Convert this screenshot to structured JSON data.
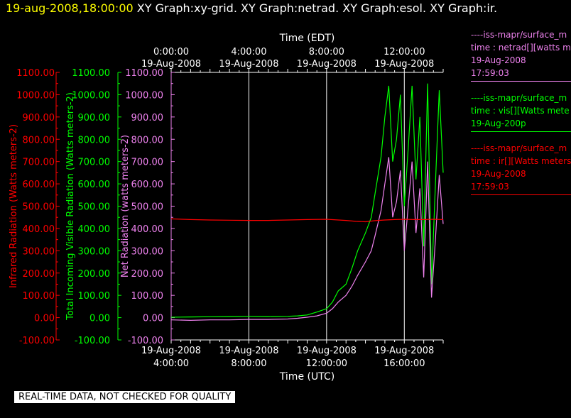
{
  "header": {
    "date": "19-aug-2008,18:00:00",
    "graphs": "XY Graph:xy-grid.  XY Graph:netrad.  XY Graph:esol.  XY Graph:ir."
  },
  "footer": {
    "quality_note": "REAL-TIME DATA, NOT CHECKED FOR QUALITY"
  },
  "legend": [
    {
      "color": "#ee82ee",
      "lines": [
        "----iss-mapr/surface_m",
        "time : netrad[][watts m",
        "19-Aug-2008",
        "17:59:03"
      ]
    },
    {
      "color": "#00ff00",
      "lines": [
        "----iss-mapr/surface_m",
        "time : vis[][Watts mete",
        "19-Aug-200p"
      ]
    },
    {
      "color": "#ff0000",
      "lines": [
        "----iss-mapr/surface_m",
        "time : ir[][Watts meters",
        "19-Aug-2008",
        "17:59:03"
      ]
    }
  ],
  "chart_data": {
    "type": "line",
    "colors": {
      "ir": "#ff0000",
      "vis": "#00ff00",
      "netrad": "#ee82ee",
      "grid": "#ffffff"
    },
    "xlim_utc_hours": [
      4,
      18
    ],
    "top_axis": {
      "label": "Time (EDT)",
      "ticks": [
        {
          "hour_utc": 4,
          "time": "0:00:00",
          "date": "19-Aug-2008"
        },
        {
          "hour_utc": 8,
          "time": "4:00:00",
          "date": "19-Aug-2008"
        },
        {
          "hour_utc": 12,
          "time": "8:00:00",
          "date": "19-Aug-2008"
        },
        {
          "hour_utc": 16,
          "time": "12:00:00",
          "date": "19-Aug-2008"
        }
      ]
    },
    "bottom_axis": {
      "label": "Time (UTC)",
      "ticks": [
        {
          "hour_utc": 4,
          "time": "4:00:00",
          "date": "19-Aug-2008"
        },
        {
          "hour_utc": 8,
          "time": "8:00:00",
          "date": "19-Aug-2008"
        },
        {
          "hour_utc": 12,
          "time": "12:00:00",
          "date": "19-Aug-2008"
        },
        {
          "hour_utc": 16,
          "time": "16:00:00",
          "date": "19-Aug-2008"
        }
      ]
    },
    "y_axes": [
      {
        "label": "Infrared Radiation (Watts meters-2)",
        "color": "#ff0000",
        "ylim": [
          -100,
          1100
        ],
        "ticks": [
          "1100.00",
          "1000.00",
          "900.00",
          "800.00",
          "700.00",
          "600.00",
          "500.00",
          "400.00",
          "300.00",
          "200.00",
          "100.00",
          "0.00",
          "-100.00"
        ]
      },
      {
        "label": "Total Incoming Visible Radiation (Watts meters-2)",
        "color": "#00ff00",
        "ylim": [
          -100,
          1100
        ],
        "ticks": [
          "1100.00",
          "1000.00",
          "900.00",
          "800.00",
          "700.00",
          "600.00",
          "500.00",
          "400.00",
          "300.00",
          "200.00",
          "100.00",
          "0.00",
          "-100.00"
        ]
      },
      {
        "label": "Net Radiation (watts meters-2)",
        "color": "#ee82ee",
        "ylim": [
          -100,
          1100
        ],
        "ticks": [
          "1100.00",
          "1000.00",
          "900.00",
          "800.00",
          "700.00",
          "600.00",
          "500.00",
          "400.00",
          "300.00",
          "200.00",
          "100.00",
          "0.00",
          "-100.00"
        ]
      }
    ],
    "series": [
      {
        "key": "ir",
        "x": [
          4,
          5,
          6,
          7,
          8,
          9,
          10,
          11,
          12,
          13,
          13.5,
          14,
          14.5,
          15,
          15.5,
          16,
          16.5,
          17,
          17.5,
          18
        ],
        "y": [
          443,
          440,
          438,
          437,
          436,
          436,
          438,
          440,
          441,
          436,
          432,
          430,
          435,
          438,
          440,
          441,
          440,
          440,
          441,
          440
        ]
      },
      {
        "key": "vis",
        "x": [
          4,
          5,
          6,
          7,
          8,
          9,
          10,
          10.5,
          11,
          11.5,
          12,
          12.3,
          12.6,
          13,
          13.3,
          13.6,
          14,
          14.3,
          14.5,
          14.8,
          15,
          15.2,
          15.4,
          15.6,
          15.8,
          16,
          16.2,
          16.4,
          16.6,
          16.8,
          17,
          17.2,
          17.4,
          17.6,
          17.8,
          18
        ],
        "y": [
          2,
          3,
          4,
          5,
          6,
          5,
          6,
          8,
          12,
          25,
          40,
          70,
          120,
          150,
          220,
          300,
          380,
          450,
          560,
          720,
          900,
          1040,
          700,
          800,
          1000,
          500,
          760,
          1040,
          620,
          900,
          320,
          1050,
          150,
          600,
          1020,
          650
        ]
      },
      {
        "key": "netrad",
        "x": [
          4,
          5,
          6,
          7,
          8,
          9,
          10,
          10.5,
          11,
          11.5,
          12,
          12.3,
          12.6,
          13,
          13.3,
          13.6,
          14,
          14.3,
          14.5,
          14.8,
          15,
          15.2,
          15.4,
          15.6,
          15.8,
          16,
          16.2,
          16.4,
          16.6,
          16.8,
          17,
          17.2,
          17.4,
          17.6,
          17.8,
          18
        ],
        "y": [
          -10,
          -12,
          -10,
          -10,
          -8,
          -8,
          -6,
          -3,
          2,
          8,
          20,
          40,
          70,
          100,
          140,
          190,
          250,
          300,
          370,
          480,
          600,
          720,
          450,
          520,
          660,
          300,
          500,
          700,
          380,
          580,
          180,
          700,
          90,
          350,
          640,
          420
        ]
      }
    ]
  }
}
